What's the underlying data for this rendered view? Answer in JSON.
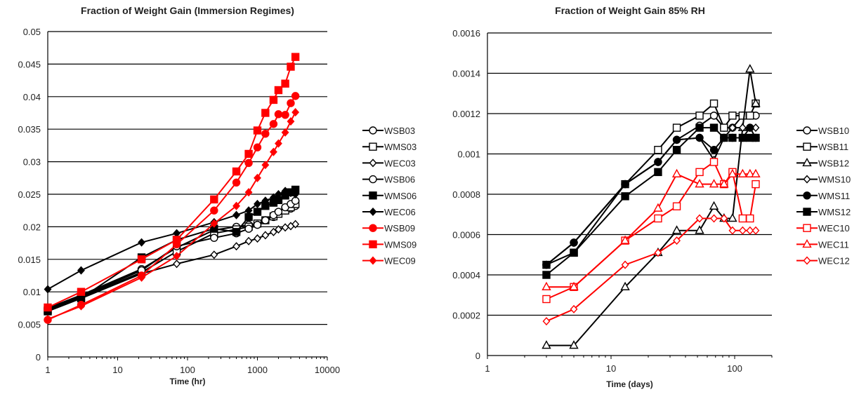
{
  "chart_data": [
    {
      "type": "line",
      "title": "Fraction of Weight Gain (Immersion Regimes)",
      "xlabel": "Time (hr)",
      "ylabel": "",
      "xscale": "log",
      "xlim": [
        1,
        10000
      ],
      "ylim": [
        0,
        0.05
      ],
      "xticks": [
        "1",
        "10",
        "100",
        "1000",
        "10000"
      ],
      "yticks": [
        "0",
        "0.005",
        "0.01",
        "0.015",
        "0.02",
        "0.025",
        "0.03",
        "0.035",
        "0.04",
        "0.045",
        "0.05"
      ],
      "grid": "horizontal",
      "legend_position": "right",
      "series": [
        {
          "name": "WSB03",
          "color": "#000000",
          "marker": "circle",
          "filled": false,
          "x": [
            1,
            3,
            22,
            70,
            240,
            500,
            750,
            1000,
            1300,
            1700,
            2000,
            2500,
            3000,
            3500
          ],
          "y": [
            0.0075,
            0.0095,
            0.0135,
            0.0168,
            0.0195,
            0.02,
            0.0203,
            0.0205,
            0.021,
            0.0215,
            0.022,
            0.0225,
            0.0228,
            0.0232
          ]
        },
        {
          "name": "WMS03",
          "color": "#000000",
          "marker": "square",
          "filled": false,
          "x": [
            1,
            3,
            22,
            70,
            240,
            500,
            750,
            1000,
            1300,
            1700,
            2000,
            2500,
            3000,
            3500
          ],
          "y": [
            0.0072,
            0.0092,
            0.013,
            0.0162,
            0.019,
            0.0196,
            0.02,
            0.0205,
            0.021,
            0.0216,
            0.022,
            0.0225,
            0.023,
            0.0235
          ]
        },
        {
          "name": "WEC03",
          "color": "#000000",
          "marker": "diamond",
          "filled": false,
          "x": [
            1,
            3,
            22,
            70,
            240,
            500,
            750,
            1000,
            1300,
            1700,
            2000,
            2500,
            3000,
            3500
          ],
          "y": [
            0.0072,
            0.009,
            0.0128,
            0.0143,
            0.0157,
            0.017,
            0.0178,
            0.0182,
            0.0187,
            0.0192,
            0.0196,
            0.0199,
            0.0201,
            0.0204
          ]
        },
        {
          "name": "WSB06",
          "color": "#000000",
          "marker": "circle",
          "filled": false,
          "x": [
            1,
            3,
            22,
            70,
            240,
            500,
            750,
            1000,
            1300,
            1700,
            2000,
            2500,
            3000,
            3500
          ],
          "y": [
            0.0073,
            0.0093,
            0.0133,
            0.017,
            0.0183,
            0.019,
            0.0197,
            0.0203,
            0.021,
            0.0218,
            0.0223,
            0.023,
            0.0235,
            0.024
          ]
        },
        {
          "name": "WMS06",
          "color": "#000000",
          "marker": "square",
          "filled": true,
          "x": [
            1,
            3,
            22,
            70,
            240,
            500,
            750,
            1000,
            1300,
            1700,
            2000,
            2500,
            3000,
            3500
          ],
          "y": [
            0.007,
            0.009,
            0.0153,
            0.018,
            0.0197,
            0.0192,
            0.0215,
            0.0223,
            0.0232,
            0.0237,
            0.0241,
            0.0248,
            0.0253,
            0.0257
          ]
        },
        {
          "name": "WEC06",
          "color": "#000000",
          "marker": "diamond",
          "filled": true,
          "x": [
            1,
            3,
            22,
            70,
            240,
            500,
            750,
            1000,
            1300,
            1700,
            2000,
            2500,
            3000,
            3500
          ],
          "y": [
            0.0104,
            0.0133,
            0.0176,
            0.019,
            0.0207,
            0.0218,
            0.0225,
            0.0235,
            0.024,
            0.0245,
            0.025,
            0.0255,
            0.0252,
            0.025
          ]
        },
        {
          "name": "WSB09",
          "color": "#ff0000",
          "marker": "circle",
          "filled": true,
          "x": [
            1,
            3,
            22,
            70,
            240,
            500,
            750,
            1000,
            1300,
            1700,
            2000,
            2500,
            3000,
            3500
          ],
          "y": [
            0.0057,
            0.008,
            0.0125,
            0.0173,
            0.0225,
            0.0268,
            0.0298,
            0.0322,
            0.0343,
            0.0358,
            0.0373,
            0.0372,
            0.039,
            0.0401
          ]
        },
        {
          "name": "WMS09",
          "color": "#ff0000",
          "marker": "square",
          "filled": true,
          "x": [
            1,
            3,
            22,
            70,
            240,
            500,
            750,
            1000,
            1300,
            1700,
            2000,
            2500,
            3000,
            3500
          ],
          "y": [
            0.0076,
            0.01,
            0.015,
            0.018,
            0.0242,
            0.0285,
            0.0312,
            0.0348,
            0.0375,
            0.0395,
            0.041,
            0.042,
            0.0446,
            0.0461
          ]
        },
        {
          "name": "WEC09",
          "color": "#ff0000",
          "marker": "diamond",
          "filled": true,
          "x": [
            1,
            3,
            22,
            70,
            240,
            500,
            750,
            1000,
            1300,
            1700,
            2000,
            2500,
            3000,
            3500
          ],
          "y": [
            0.0058,
            0.0078,
            0.0122,
            0.0155,
            0.0205,
            0.0232,
            0.0253,
            0.0275,
            0.0295,
            0.0315,
            0.0328,
            0.0345,
            0.0362,
            0.0376
          ]
        }
      ]
    },
    {
      "type": "line",
      "title": "Fraction of Weight Gain 85% RH",
      "xlabel": "Time (days)",
      "ylabel": "",
      "xscale": "log",
      "xlim": [
        1,
        200
      ],
      "ylim": [
        0,
        0.0016
      ],
      "xticks": [
        "1",
        "10",
        "100"
      ],
      "yticks": [
        "0",
        "0.0002",
        "0.0004",
        "0.0006",
        "0.0008",
        "0.001",
        "0.0012",
        "0.0014",
        "0.0016"
      ],
      "grid": "horizontal",
      "legend_position": "right",
      "series": [
        {
          "name": "WSB10",
          "color": "#000000",
          "marker": "circle",
          "filled": false,
          "x": [
            3,
            5,
            13,
            24,
            34,
            52,
            68,
            82,
            96,
            116,
            133,
            148
          ],
          "y": [
            0.00045,
            0.00056,
            0.00085,
            0.00096,
            0.00107,
            0.00114,
            0.00119,
            0.00113,
            0.00113,
            0.00119,
            0.00119,
            0.00119
          ]
        },
        {
          "name": "WSB11",
          "color": "#000000",
          "marker": "square",
          "filled": false,
          "x": [
            3,
            5,
            13,
            24,
            34,
            52,
            68,
            82,
            96,
            116,
            133,
            148
          ],
          "y": [
            0.00045,
            0.00051,
            0.00085,
            0.00102,
            0.00113,
            0.00119,
            0.00125,
            0.00113,
            0.00119,
            0.00119,
            0.00119,
            0.00125
          ]
        },
        {
          "name": "WSB12",
          "color": "#000000",
          "marker": "triangle",
          "filled": false,
          "x": [
            3,
            5,
            13,
            24,
            34,
            52,
            68,
            82,
            96,
            116,
            133,
            148
          ],
          "y": [
            5e-05,
            5e-05,
            0.00034,
            0.00051,
            0.00062,
            0.00062,
            0.00074,
            0.00068,
            0.00068,
            0.00113,
            0.00142,
            0.00125
          ]
        },
        {
          "name": "WMS10",
          "color": "#000000",
          "marker": "diamond",
          "filled": false,
          "x": [
            3,
            5,
            13,
            24,
            34,
            52,
            68,
            82,
            96,
            116,
            133,
            148
          ],
          "y": [
            0.00045,
            0.00056,
            0.00085,
            0.00096,
            0.00107,
            0.00108,
            0.00097,
            0.00108,
            0.00113,
            0.00113,
            0.00113,
            0.00113
          ]
        },
        {
          "name": "WMS11",
          "color": "#000000",
          "marker": "circle",
          "filled": true,
          "x": [
            3,
            5,
            13,
            24,
            34,
            52,
            68,
            82,
            96,
            116,
            133,
            148
          ],
          "y": [
            0.00045,
            0.00056,
            0.00085,
            0.00096,
            0.00107,
            0.00108,
            0.00102,
            0.00108,
            0.00108,
            0.00108,
            0.00113,
            0.00108
          ]
        },
        {
          "name": "WMS12",
          "color": "#000000",
          "marker": "square",
          "filled": true,
          "x": [
            3,
            5,
            13,
            24,
            34,
            52,
            68,
            82,
            96,
            116,
            133,
            148
          ],
          "y": [
            0.0004,
            0.00051,
            0.00079,
            0.00091,
            0.00102,
            0.00113,
            0.00113,
            0.00108,
            0.00108,
            0.00108,
            0.00108,
            0.00108
          ]
        },
        {
          "name": "WEC10",
          "color": "#ff0000",
          "marker": "square",
          "filled": false,
          "x": [
            3,
            5,
            13,
            24,
            34,
            52,
            68,
            82,
            96,
            116,
            133,
            148
          ],
          "y": [
            0.00028,
            0.00034,
            0.00057,
            0.00068,
            0.00074,
            0.00091,
            0.00096,
            0.00085,
            0.00091,
            0.00068,
            0.00068,
            0.00085
          ]
        },
        {
          "name": "WEC11",
          "color": "#ff0000",
          "marker": "triangle",
          "filled": false,
          "x": [
            3,
            5,
            13,
            24,
            34,
            52,
            68,
            82,
            96,
            116,
            133,
            148
          ],
          "y": [
            0.00034,
            0.00034,
            0.00057,
            0.00073,
            0.0009,
            0.00085,
            0.00085,
            0.00085,
            0.0009,
            0.0009,
            0.0009,
            0.0009
          ]
        },
        {
          "name": "WEC12",
          "color": "#ff0000",
          "marker": "diamond",
          "filled": false,
          "x": [
            3,
            5,
            13,
            24,
            34,
            52,
            68,
            82,
            96,
            116,
            133,
            148
          ],
          "y": [
            0.00017,
            0.00023,
            0.00045,
            0.00051,
            0.00057,
            0.00068,
            0.00068,
            0.00068,
            0.00062,
            0.00062,
            0.00062,
            0.00062
          ]
        }
      ]
    }
  ]
}
